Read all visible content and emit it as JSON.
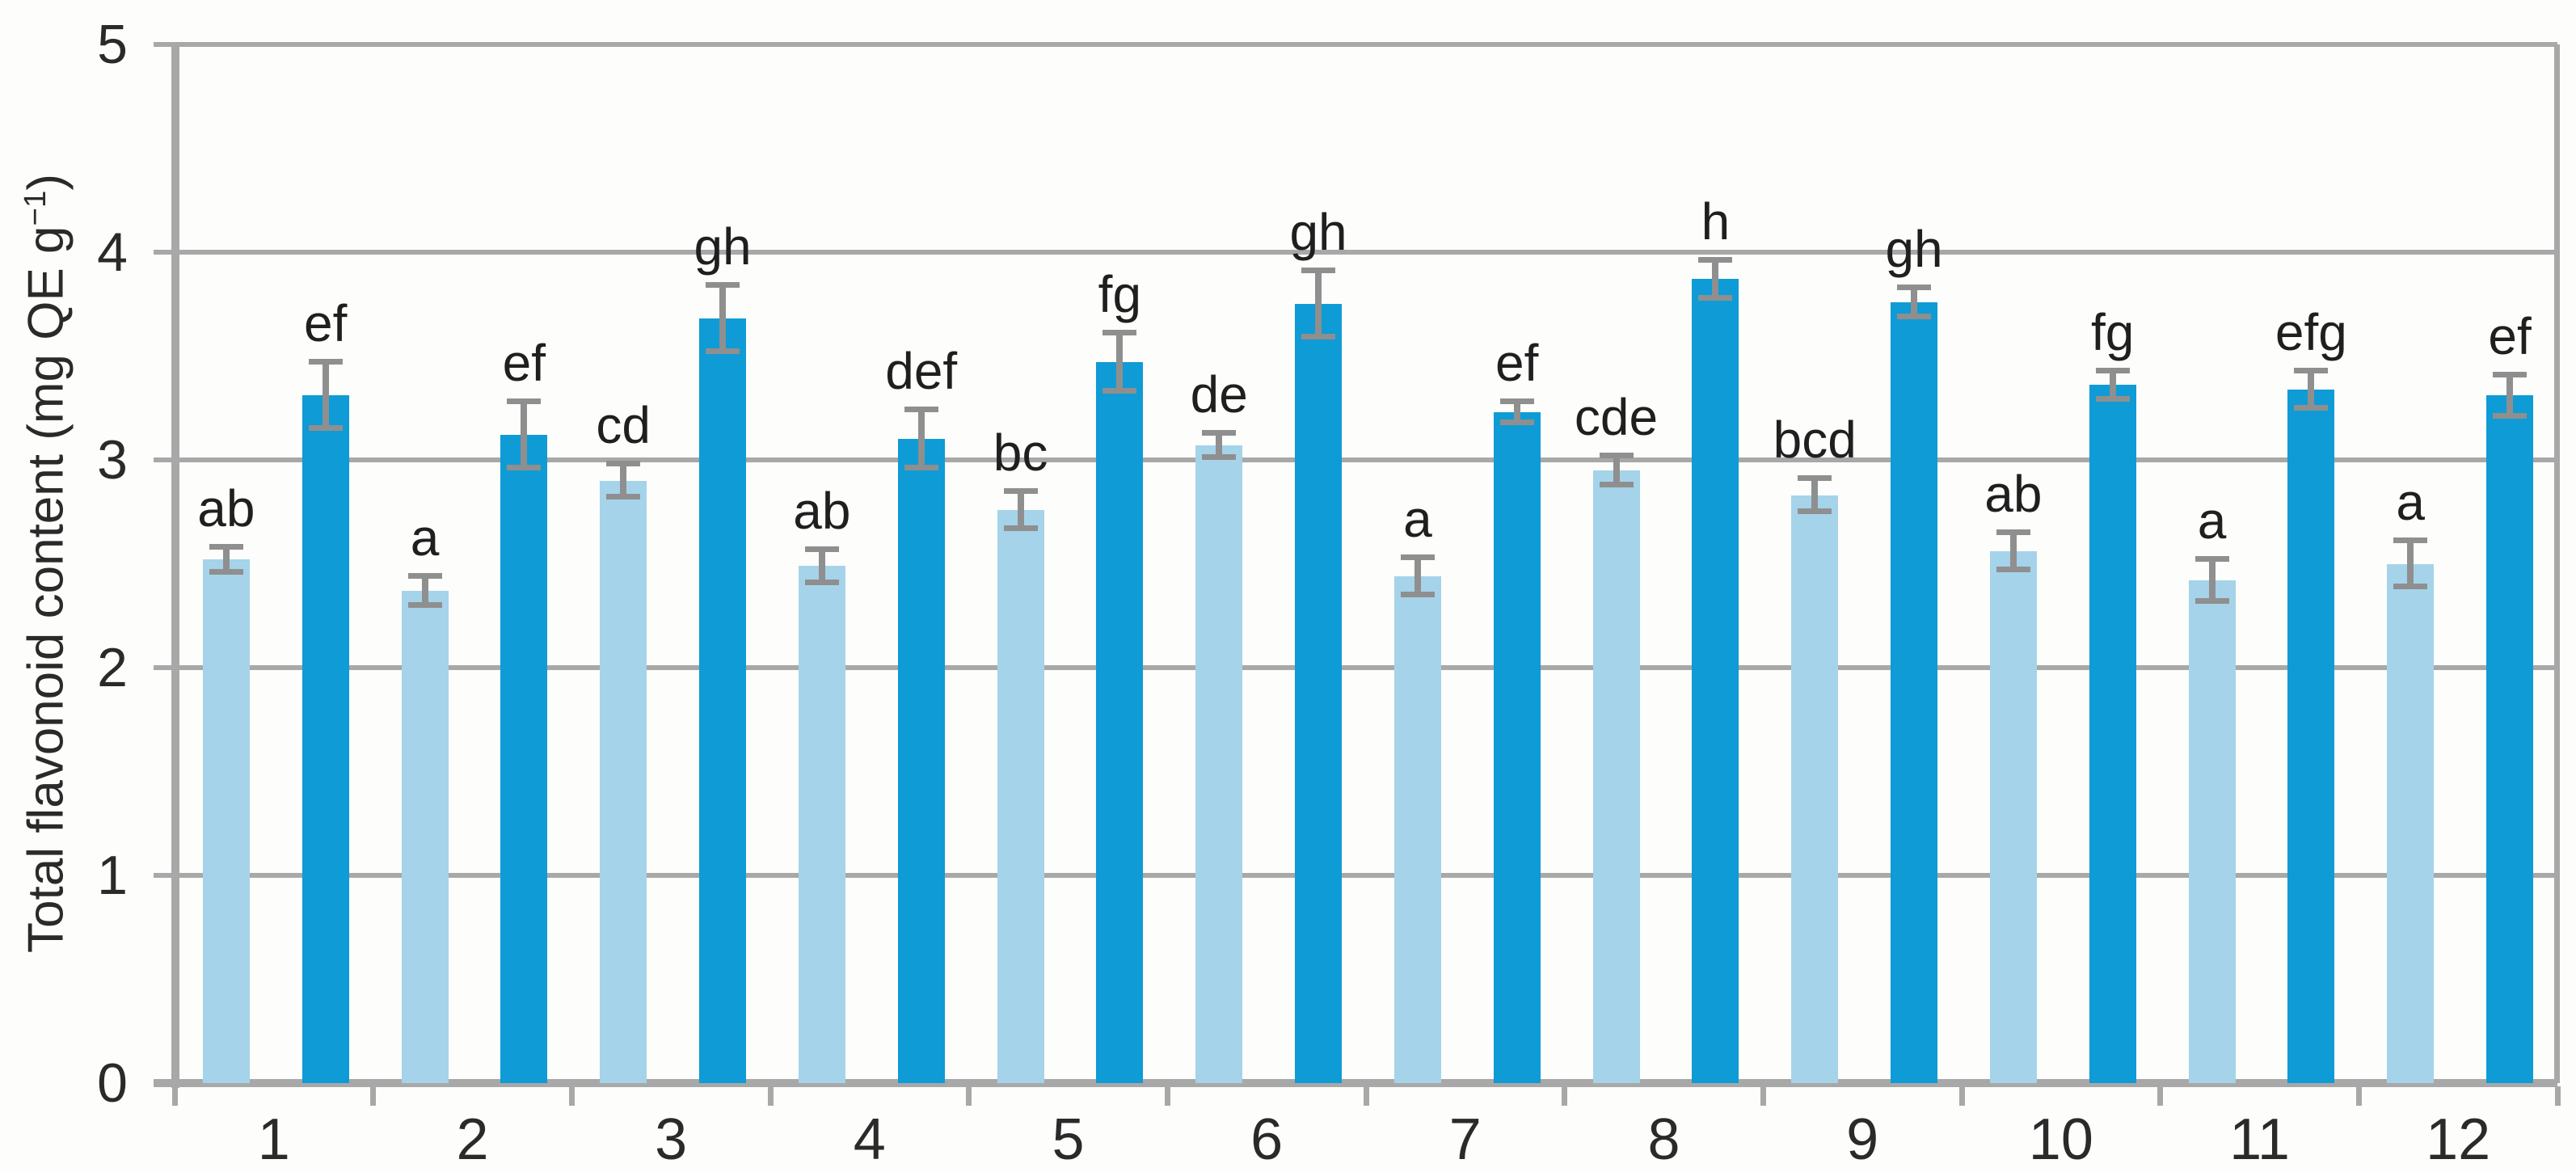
{
  "page": {
    "background": "#fdfdfb"
  },
  "chart_data": {
    "type": "bar",
    "title": "",
    "xlabel": "",
    "ylabel": "Total flavonoid content (mg QE g⁻¹)",
    "ylabel_parts": {
      "main": "Total flavonoid content (mg QE g",
      "sup": "−1",
      "close": ")"
    },
    "ylim": [
      0,
      5
    ],
    "yticks": [
      "0",
      "1",
      "2",
      "3",
      "4",
      "5"
    ],
    "grid": true,
    "legend": false,
    "categories": [
      "1",
      "2",
      "3",
      "4",
      "5",
      "6",
      "7",
      "8",
      "9",
      "10",
      "11",
      "12"
    ],
    "series": [
      {
        "key": "light-blue",
        "color": "#a5d3ea",
        "values": [
          2.52,
          2.37,
          2.9,
          2.49,
          2.76,
          3.07,
          2.44,
          2.95,
          2.83,
          2.56,
          2.42,
          2.5
        ],
        "errors": [
          0.06,
          0.07,
          0.08,
          0.08,
          0.09,
          0.06,
          0.09,
          0.07,
          0.08,
          0.09,
          0.1,
          0.11
        ],
        "letters": [
          "ab",
          "a",
          "cd",
          "ab",
          "bc",
          "de",
          "a",
          "cde",
          "bcd",
          "ab",
          "a",
          "a"
        ]
      },
      {
        "key": "dark-blue",
        "color": "#0f9bd5",
        "values": [
          3.31,
          3.12,
          3.68,
          3.1,
          3.47,
          3.75,
          3.23,
          3.87,
          3.76,
          3.36,
          3.34,
          3.31
        ],
        "errors": [
          0.16,
          0.16,
          0.16,
          0.14,
          0.14,
          0.16,
          0.05,
          0.09,
          0.07,
          0.07,
          0.09,
          0.1
        ],
        "letters": [
          "ef",
          "ef",
          "gh",
          "def",
          "fg",
          "gh",
          "ef",
          "h",
          "gh",
          "fg",
          "efg",
          "ef"
        ]
      }
    ],
    "colors": {
      "gridline": "#a8a8a8",
      "axis": "#a8a8a8",
      "error_bar": "#8f8f8f",
      "text": "#2a2a2a"
    }
  }
}
